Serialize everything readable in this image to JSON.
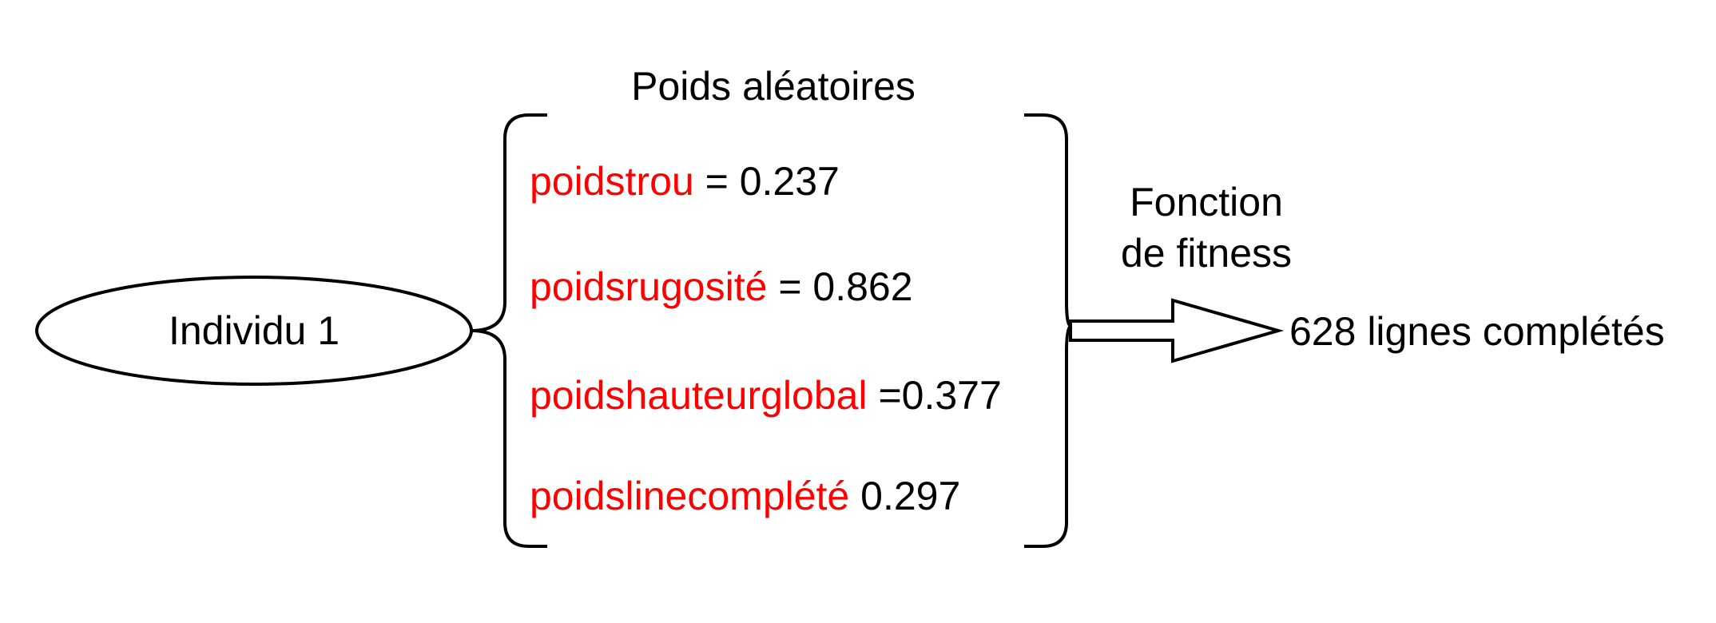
{
  "individual": {
    "label": "Individu 1"
  },
  "weights": {
    "title": "Poids aléatoires",
    "items": [
      {
        "name": "poidstrou",
        "separator": " = ",
        "value": "0.237"
      },
      {
        "name": "poidsrugosité",
        "separator": " = ",
        "value": "0.862"
      },
      {
        "name": "poidshauteurglobal",
        "separator": " =",
        "value": "0.377"
      },
      {
        "name": "poidslinecomplété",
        "separator": " ",
        "value": "0.297"
      }
    ]
  },
  "fitness": {
    "label_line1": "Fonction",
    "label_line2": "de fitness"
  },
  "result": {
    "label": "628 lignes complétés"
  },
  "colors": {
    "weight_name": "#ff0000",
    "text": "#000000",
    "stroke": "#000000",
    "background": "#ffffff"
  }
}
